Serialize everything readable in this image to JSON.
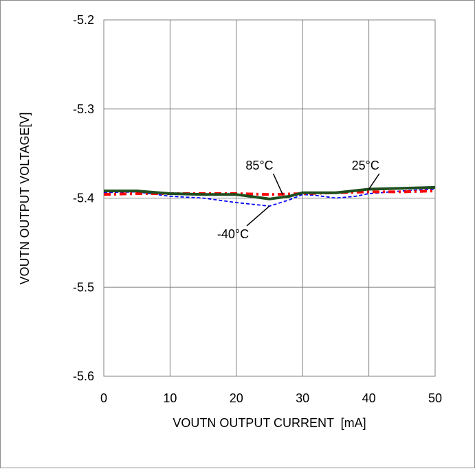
{
  "chart_data": {
    "type": "line",
    "title": "",
    "xlabel": "VOUTN OUTPUT CURRENT  [mA]",
    "ylabel": "VOUTN OUTPUT VOLTAGE[V]",
    "xlim": [
      0,
      50
    ],
    "ylim": [
      -5.6,
      -5.2
    ],
    "x_ticks": [
      0,
      10,
      20,
      30,
      40,
      50
    ],
    "x_tick_labels": [
      "0",
      "10",
      "20",
      "30",
      "40",
      "50"
    ],
    "y_ticks": [
      -5.2,
      -5.3,
      -5.4,
      -5.5,
      -5.6
    ],
    "y_tick_labels": [
      "-5.2",
      "-5.3",
      "-5.4",
      "-5.5",
      "-5.6"
    ],
    "grid": true,
    "legend": "none",
    "series": [
      {
        "name": "85°C",
        "color": "#ff0000",
        "style": "dash-dot",
        "x": [
          0,
          5,
          10,
          15,
          20,
          25,
          30,
          35,
          40,
          45,
          50
        ],
        "y": [
          -5.396,
          -5.395,
          -5.395,
          -5.395,
          -5.395,
          -5.396,
          -5.395,
          -5.394,
          -5.393,
          -5.393,
          -5.392
        ]
      },
      {
        "name": "25°C",
        "color": "#1f4e1f",
        "style": "solid",
        "x": [
          0,
          5,
          10,
          15,
          20,
          22,
          25,
          28,
          30,
          35,
          40,
          45,
          50
        ],
        "y": [
          -5.392,
          -5.392,
          -5.395,
          -5.396,
          -5.396,
          -5.398,
          -5.401,
          -5.398,
          -5.394,
          -5.394,
          -5.39,
          -5.389,
          -5.388
        ]
      },
      {
        "name": "-40°C",
        "color": "#0000ff",
        "style": "dashed",
        "x": [
          0,
          5,
          8,
          10,
          15,
          20,
          25,
          28,
          30,
          32,
          35,
          38,
          40,
          45,
          50
        ],
        "y": [
          -5.394,
          -5.393,
          -5.396,
          -5.398,
          -5.4,
          -5.405,
          -5.409,
          -5.402,
          -5.396,
          -5.397,
          -5.4,
          -5.398,
          -5.395,
          -5.392,
          -5.39
        ]
      }
    ],
    "annotations": [
      {
        "text": "85°C",
        "x": 23.5,
        "y": -5.368,
        "arrow_to": [
          27,
          -5.396
        ]
      },
      {
        "text": "25°C",
        "x": 39.5,
        "y": -5.368,
        "arrow_to": [
          40,
          -5.39
        ]
      },
      {
        "text": "-40°C",
        "x": 19.5,
        "y": -5.445,
        "arrow_to": [
          25,
          -5.409
        ]
      }
    ]
  }
}
